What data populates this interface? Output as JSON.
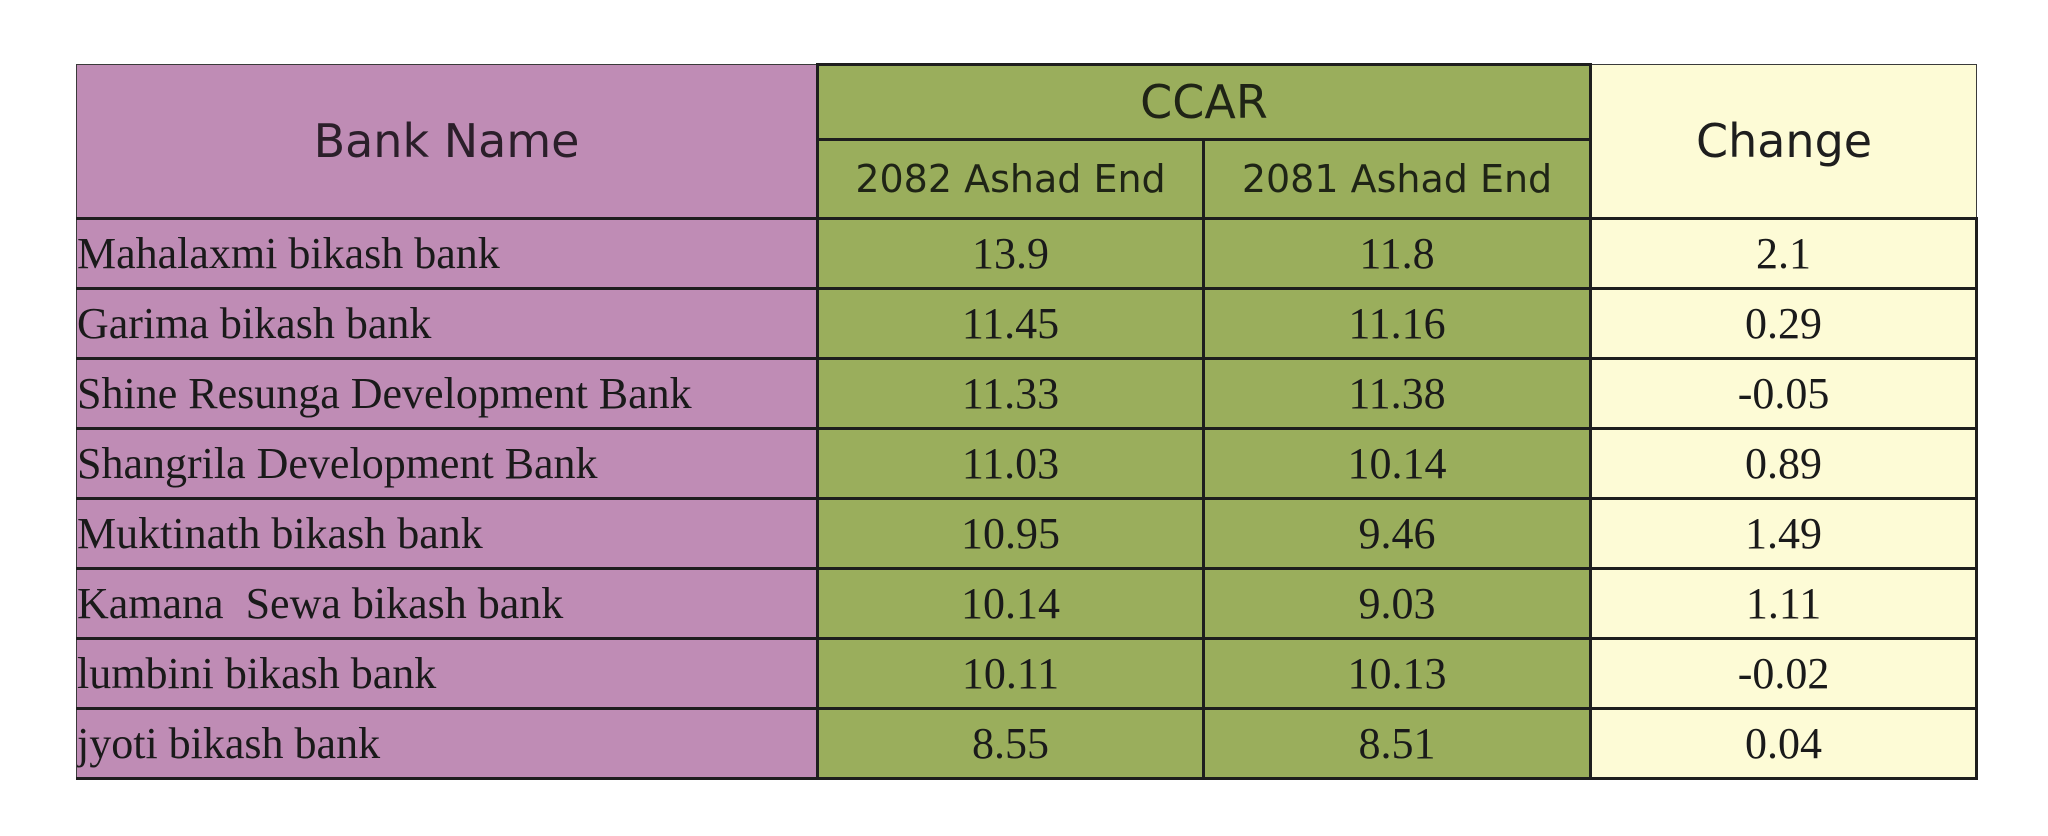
{
  "table": {
    "headers": {
      "bank_name": "Bank Name",
      "ccar": "CCAR",
      "year_2082": "2082 Ashad End",
      "year_2081": "2081 Ashad End",
      "change": "Change"
    },
    "rows": [
      {
        "bank": "Mahalaxmi bikash bank",
        "y2082": "13.9",
        "y2081": "11.8",
        "change": "2.1"
      },
      {
        "bank": "Garima bikash bank",
        "y2082": "11.45",
        "y2081": "11.16",
        "change": "0.29"
      },
      {
        "bank": "Shine Resunga Development Bank",
        "y2082": "11.33",
        "y2081": "11.38",
        "change": "-0.05"
      },
      {
        "bank": "Shangrila Development Bank",
        "y2082": "11.03",
        "y2081": "10.14",
        "change": "0.89"
      },
      {
        "bank": "Muktinath bikash bank",
        "y2082": "10.95",
        "y2081": "9.46",
        "change": "1.49"
      },
      {
        "bank": "Kamana  Sewa bikash bank",
        "y2082": "10.14",
        "y2081": "9.03",
        "change": "1.11"
      },
      {
        "bank": "lumbini bikash bank",
        "y2082": "10.11",
        "y2081": "10.13",
        "change": "-0.02"
      },
      {
        "bank": "jyoti bikash bank",
        "y2082": "8.55",
        "y2081": "8.51",
        "change": "0.04"
      }
    ]
  },
  "colors": {
    "bank_column": "#bf8cb5",
    "ccar_columns": "#9aae5c",
    "change_column": "#fdfbd6",
    "border": "#1e1e1e"
  }
}
